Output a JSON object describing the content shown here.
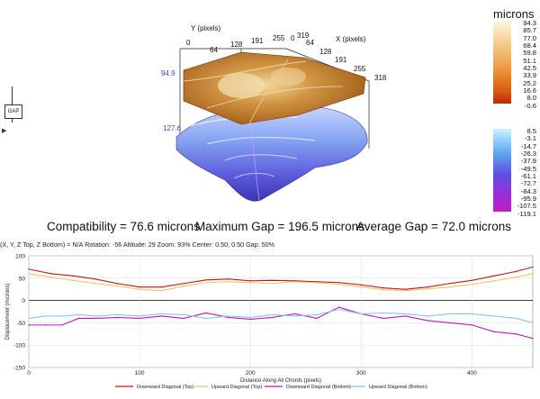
{
  "colorbar_top": {
    "unit": "microns",
    "labels": [
      "94.3",
      "85.7",
      "77.0",
      "68.4",
      "59.8",
      "51.1",
      "42.5",
      "33.9",
      "25.2",
      "16.6",
      "8.0",
      "-0.6"
    ],
    "colors": [
      "#fffbe6",
      "#f8d7a0",
      "#f0b060",
      "#e88a30",
      "#d85a10",
      "#c02808"
    ]
  },
  "colorbar_bottom": {
    "labels": [
      "8.5",
      "-3.1",
      "-14.7",
      "-26.3",
      "-37.9",
      "-49.5",
      "-61.1",
      "-72.7",
      "-84.3",
      "-95.9",
      "-107.5",
      "-119.1"
    ],
    "colors": [
      "#c9f3ff",
      "#5aa6f0",
      "#5e4de0",
      "#9b2fd6",
      "#c21fc6"
    ]
  },
  "surface": {
    "y_axis_label": "Y (pixels)",
    "x_axis_label": "X (pixels)",
    "y_ticks": [
      "0",
      "64",
      "128",
      "191",
      "255",
      "319"
    ],
    "x_ticks": [
      "0",
      "64",
      "128",
      "191",
      "255",
      "318"
    ],
    "top_z_label": "94.9",
    "bottom_z_label": "127.6"
  },
  "side_widget": {
    "label": "GAP",
    "icon": "play-triangle-icon"
  },
  "stats": {
    "compatibility": "Compatibility = 76.6 microns",
    "max_gap": "Maximum Gap = 196.5 microns",
    "avg_gap": "Average Gap = 72.0 microns"
  },
  "status_line": "(X, Y, Z Top, Z Bottom) = N/A   Rotation: -56 Altitude: 29  Zoom: 93%  Center: 0.50, 0.50  Gap: 50%",
  "chart_data": {
    "type": "line",
    "title": "",
    "xlabel": "Distance Along All Chords (pixels)",
    "ylabel": "Displacement (microns)",
    "xlim": [
      0,
      455
    ],
    "ylim": [
      -150,
      100
    ],
    "xticks": [
      0,
      100,
      200,
      300,
      400
    ],
    "yticks": [
      100,
      50,
      0,
      -50,
      -100,
      -150
    ],
    "grid": true,
    "legend_position": "bottom",
    "series": [
      {
        "name": "Downward Diagonal (Top)",
        "color": "#cc1010",
        "x": [
          0,
          20,
          40,
          60,
          80,
          100,
          120,
          140,
          160,
          180,
          200,
          220,
          240,
          260,
          280,
          300,
          320,
          340,
          360,
          380,
          400,
          420,
          440,
          455
        ],
        "y": [
          70,
          60,
          55,
          48,
          38,
          30,
          30,
          38,
          46,
          48,
          44,
          45,
          44,
          42,
          40,
          35,
          28,
          25,
          30,
          38,
          45,
          55,
          65,
          75
        ]
      },
      {
        "name": "Upward Diagonal (Top)",
        "color": "#f2c36a",
        "x": [
          0,
          20,
          40,
          60,
          80,
          100,
          120,
          140,
          160,
          180,
          200,
          220,
          240,
          260,
          280,
          300,
          320,
          340,
          360,
          380,
          400,
          420,
          440,
          455
        ],
        "y": [
          60,
          52,
          45,
          38,
          32,
          25,
          22,
          32,
          40,
          42,
          40,
          38,
          42,
          40,
          36,
          30,
          24,
          22,
          26,
          30,
          36,
          44,
          52,
          60
        ]
      },
      {
        "name": "Downward Diagonal (Bottom)",
        "color": "#c013c0",
        "x": [
          0,
          15,
          30,
          45,
          60,
          80,
          100,
          120,
          140,
          160,
          180,
          200,
          220,
          240,
          260,
          280,
          300,
          320,
          340,
          360,
          380,
          400,
          420,
          440,
          455
        ],
        "y": [
          -55,
          -55,
          -55,
          -40,
          -40,
          -38,
          -40,
          -35,
          -40,
          -28,
          -38,
          -42,
          -38,
          -30,
          -40,
          -15,
          -30,
          -40,
          -35,
          -45,
          -50,
          -55,
          -70,
          -75,
          -85
        ]
      },
      {
        "name": "Upward Diagonal (Bottom)",
        "color": "#80c8ec",
        "x": [
          0,
          15,
          30,
          45,
          60,
          80,
          100,
          120,
          140,
          160,
          180,
          200,
          220,
          240,
          260,
          280,
          300,
          320,
          340,
          360,
          380,
          400,
          420,
          440,
          455
        ],
        "y": [
          -40,
          -35,
          -35,
          -32,
          -35,
          -32,
          -35,
          -30,
          -32,
          -40,
          -35,
          -38,
          -32,
          -35,
          -32,
          -20,
          -30,
          -28,
          -30,
          -35,
          -30,
          -30,
          -35,
          -40,
          -50
        ]
      }
    ]
  }
}
